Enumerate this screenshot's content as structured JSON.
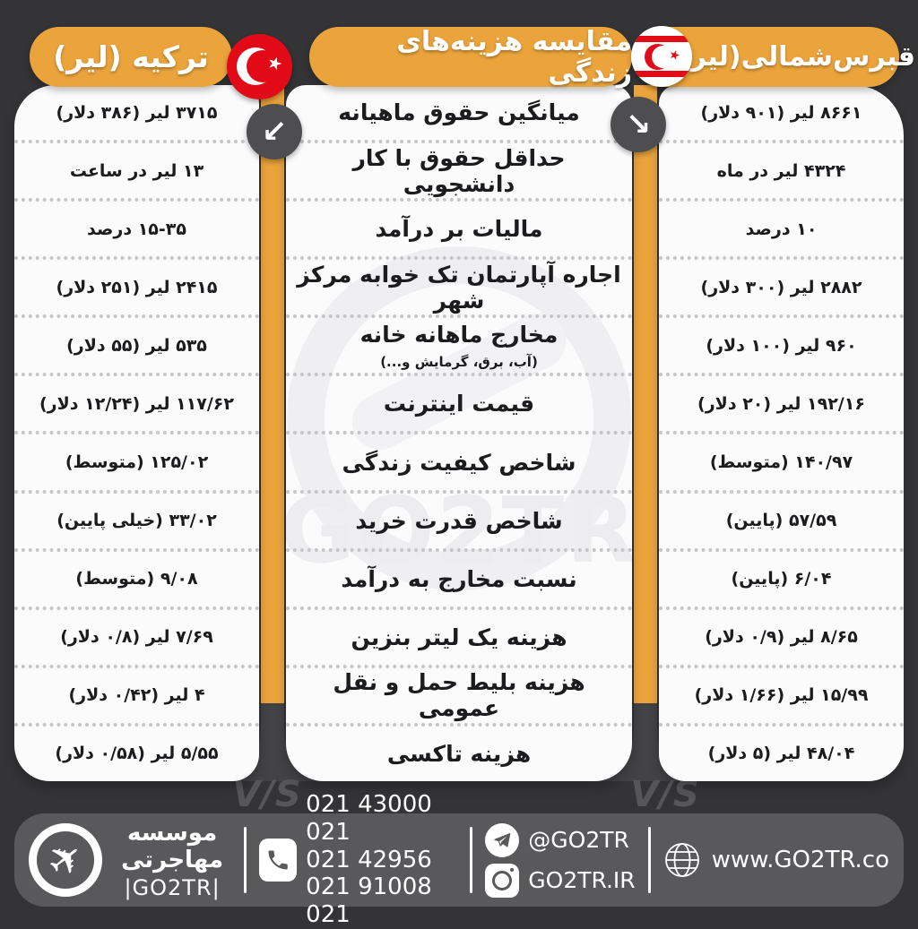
{
  "title": "مقایسه هزینه‌های زندگی",
  "header": {
    "right_country": "قبرس‌شمالی(لیر)",
    "center_title": "مقایسه هزینه‌های زندگی",
    "left_country": "ترکیه (لیر)"
  },
  "vs_label": "V/S",
  "watermark_text": "GO2TR",
  "arrows": {
    "right": "↘",
    "left": "↙"
  },
  "chart_data": {
    "type": "table",
    "title": "مقایسه هزینه‌های زندگی",
    "columns": [
      "قبرس‌شمالی(لیر)",
      "مقایسه هزینه‌های زندگی",
      "ترکیه (لیر)"
    ],
    "rows": [
      {
        "category": "میانگین حقوق ماهیانه",
        "note": "",
        "north_cyprus": "۸۶۶۱ لیر (۹۰۱ دلار)",
        "turkey": "۳۷۱۵ لیر (۳۸۶ دلار)"
      },
      {
        "category": "حداقل حقوق با کار دانشجویی",
        "note": "",
        "north_cyprus": "۴۳۲۴ لیر در ماه",
        "turkey": "۱۳ لیر در ساعت"
      },
      {
        "category": "مالیات بر درآمد",
        "note": "",
        "north_cyprus": "۱۰ درصد",
        "turkey": "۱۵-۳۵ درصد"
      },
      {
        "category": "اجاره آپارتمان تک خوابه مرکز شهر",
        "note": "",
        "north_cyprus": "۲۸۸۲ لیر (۳۰۰ دلار)",
        "turkey": "۲۴۱۵ لیر (۲۵۱ دلار)"
      },
      {
        "category": "مخارج ماهانه خانه",
        "note": "(آب، برق، گرمایش و...)",
        "north_cyprus": "۹۶۰ لیر (۱۰۰ دلار)",
        "turkey": "۵۳۵ لیر (۵۵ دلار)"
      },
      {
        "category": "قیمت اینترنت",
        "note": "",
        "north_cyprus": "۱۹۲/۱۶ لیر (۲۰ دلار)",
        "turkey": "۱۱۷/۶۲ لیر (۱۲/۲۴ دلار)"
      },
      {
        "category": "شاخص کیفیت زندگی",
        "note": "",
        "north_cyprus": "۱۴۰/۹۷ (متوسط)",
        "turkey": "۱۲۵/۰۲ (متوسط)"
      },
      {
        "category": "شاخص قدرت خرید",
        "note": "",
        "north_cyprus": "۵۷/۵۹ (پایین)",
        "turkey": "۳۳/۰۲ (خیلی پایین)"
      },
      {
        "category": "نسبت مخارج به درآمد",
        "note": "",
        "north_cyprus": "۶/۰۴ (پایین)",
        "turkey": "۹/۰۸ (متوسط)"
      },
      {
        "category": "هزینه یک لیتر بنزین",
        "note": "",
        "north_cyprus": "۸/۶۵ لیر (۰/۹ دلار)",
        "turkey": "۷/۶۹ لیر (۰/۸ دلار)"
      },
      {
        "category": "هزینه بلیط حمل و نقل عمومی",
        "note": "",
        "north_cyprus": "۱۵/۹۹ لیر (۱/۶۶ دلار)",
        "turkey": "۴ لیر (۰/۴۲ دلار)"
      },
      {
        "category": "هزینه تاکسی",
        "note": "",
        "north_cyprus": "۴۸/۰۴ لیر (۵ دلار)",
        "turkey": "۵/۵۵ لیر (۰/۵۸ دلار)"
      }
    ]
  },
  "footer": {
    "brand_line1": "موسسه مهاجرتی",
    "brand_line2": "|GO2TR|",
    "phones": [
      "021 43000 021",
      "021 42956",
      "021 91008 021"
    ],
    "telegram": "@GO2TR",
    "instagram": "GO2TR.IR",
    "website": "www.GO2TR.co"
  },
  "colors": {
    "accent_orange": "#EBA43C",
    "background": "#343436",
    "footer_bar": "#59595C",
    "flag_red": "#E30A17",
    "panel_white": "#FBFBFC",
    "text_dark": "#1C1C1E"
  }
}
